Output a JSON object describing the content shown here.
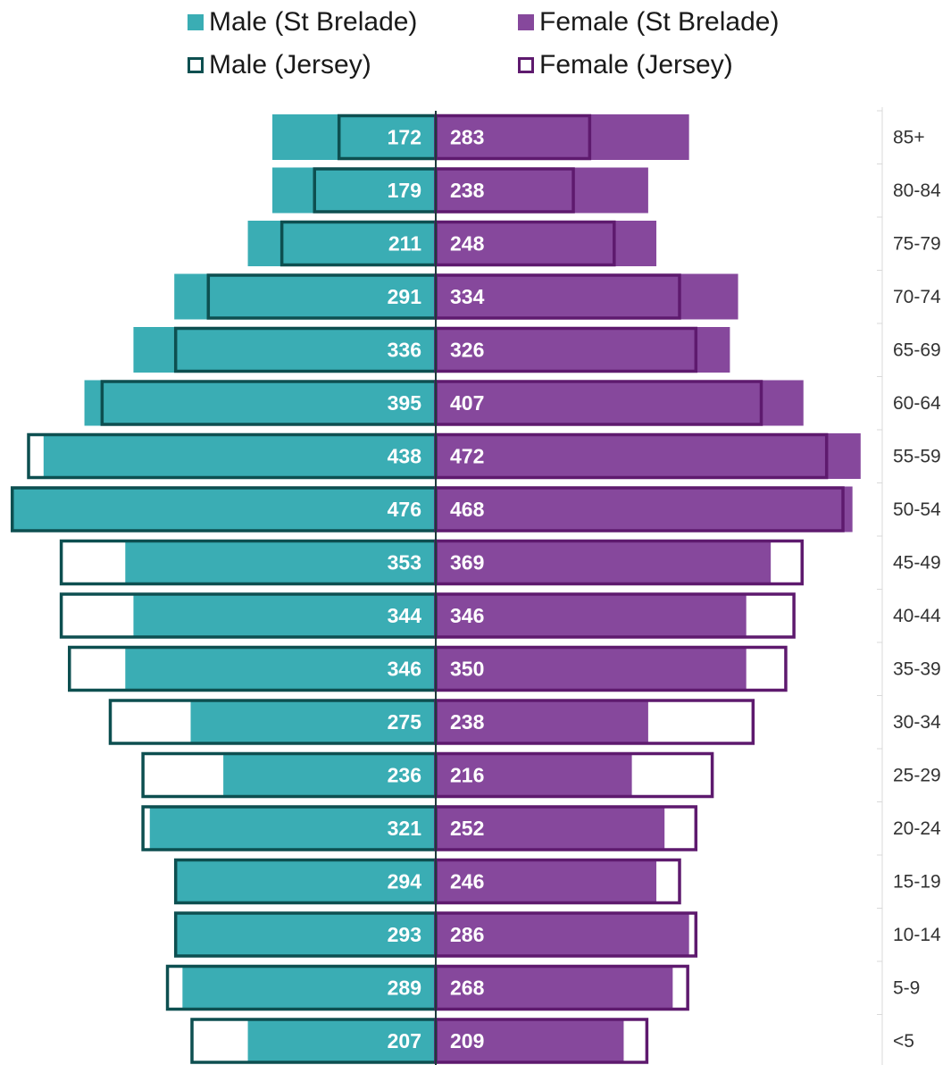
{
  "chart_data": {
    "type": "bar",
    "orientation": "horizontal-population-pyramid",
    "categories": [
      "85+",
      "80-84",
      "75-79",
      "70-74",
      "65-69",
      "60-64",
      "55-59",
      "50-54",
      "45-49",
      "40-44",
      "35-39",
      "30-34",
      "25-29",
      "20-24",
      "15-19",
      "10-14",
      "5-9",
      "<5"
    ],
    "series": [
      {
        "name": "Male (St Brelade)",
        "side": "left",
        "style": "filled",
        "color": "#3aadb4",
        "values": [
          172,
          179,
          211,
          291,
          336,
          395,
          438,
          476,
          353,
          344,
          346,
          275,
          236,
          321,
          294,
          293,
          289,
          207
        ],
        "relative_values": [
          2.0,
          2.0,
          2.3,
          3.2,
          3.7,
          4.3,
          4.8,
          5.2,
          3.8,
          3.7,
          3.8,
          3.0,
          2.6,
          3.5,
          3.2,
          3.2,
          3.1,
          2.3
        ]
      },
      {
        "name": "Female (St Brelade)",
        "side": "right",
        "style": "filled",
        "color": "#86489c",
        "values": [
          283,
          238,
          248,
          334,
          326,
          407,
          472,
          468,
          369,
          346,
          350,
          238,
          216,
          252,
          246,
          286,
          268,
          209
        ],
        "relative_values": [
          3.1,
          2.6,
          2.7,
          3.7,
          3.6,
          4.5,
          5.2,
          5.1,
          4.1,
          3.8,
          3.8,
          2.6,
          2.4,
          2.8,
          2.7,
          3.1,
          2.9,
          2.3
        ]
      },
      {
        "name": "Male (Jersey)",
        "side": "left",
        "style": "outline",
        "color": "#0d4f50",
        "relative_values": [
          1.2,
          1.5,
          1.9,
          2.8,
          3.2,
          4.1,
          5.0,
          5.2,
          4.6,
          4.6,
          4.5,
          4.0,
          3.6,
          3.6,
          3.2,
          3.2,
          3.3,
          3.0
        ]
      },
      {
        "name": "Female (Jersey)",
        "side": "right",
        "style": "outline",
        "color": "#5e1a6e",
        "relative_values": [
          1.9,
          1.7,
          2.2,
          3.0,
          3.2,
          4.0,
          4.8,
          5.0,
          4.5,
          4.4,
          4.3,
          3.9,
          3.4,
          3.2,
          3.0,
          3.2,
          3.1,
          2.6
        ]
      }
    ],
    "legend": {
      "placement": "top",
      "entries": [
        "Male (St Brelade)",
        "Female (St Brelade)",
        "Male (Jersey)",
        "Female (Jersey)"
      ]
    },
    "grid": false,
    "xlabel": "",
    "ylabel": ""
  }
}
